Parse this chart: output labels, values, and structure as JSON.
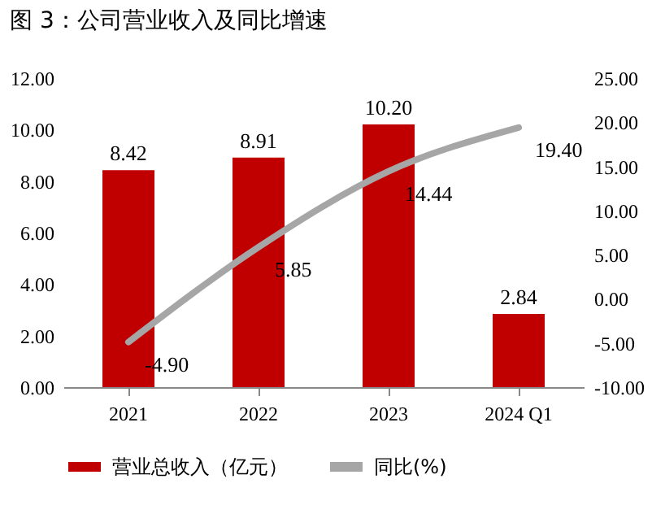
{
  "chart_data": {
    "type": "bar",
    "title": "图 3：公司营业收入及同比增速",
    "categories": [
      "2021",
      "2022",
      "2023",
      "2024 Q1"
    ],
    "series": [
      {
        "name": "营业总收入（亿元）",
        "color": "#c00000",
        "values": [
          8.42,
          8.91,
          10.2,
          2.84
        ],
        "value_labels": [
          "8.42",
          "8.91",
          "10.20",
          "2.84"
        ]
      },
      {
        "name": "同比(%)",
        "type": "line",
        "axis": "y2",
        "color": "#a6a6a6",
        "values": [
          -4.9,
          5.85,
          14.44,
          19.4
        ],
        "value_labels": [
          "-4.90",
          "5.85",
          "14.44",
          "19.40"
        ]
      }
    ],
    "ylim": [
      0,
      12
    ],
    "yticks": [
      {
        "value": 0,
        "label": "0.00"
      },
      {
        "value": 2,
        "label": "2.00"
      },
      {
        "value": 4,
        "label": "4.00"
      },
      {
        "value": 6,
        "label": "6.00"
      },
      {
        "value": 8,
        "label": "8.00"
      },
      {
        "value": 10,
        "label": "10.00"
      },
      {
        "value": 12,
        "label": "12.00"
      }
    ],
    "y2lim": [
      -10,
      25
    ],
    "y2ticks": [
      {
        "value": -10,
        "label": "-10.00"
      },
      {
        "value": -5,
        "label": "-5.00"
      },
      {
        "value": 0,
        "label": "0.00"
      },
      {
        "value": 5,
        "label": "5.00"
      },
      {
        "value": 10,
        "label": "10.00"
      },
      {
        "value": 15,
        "label": "15.00"
      },
      {
        "value": 20,
        "label": "20.00"
      },
      {
        "value": 25,
        "label": "25.00"
      }
    ],
    "legend": "bottom",
    "grid": false
  }
}
